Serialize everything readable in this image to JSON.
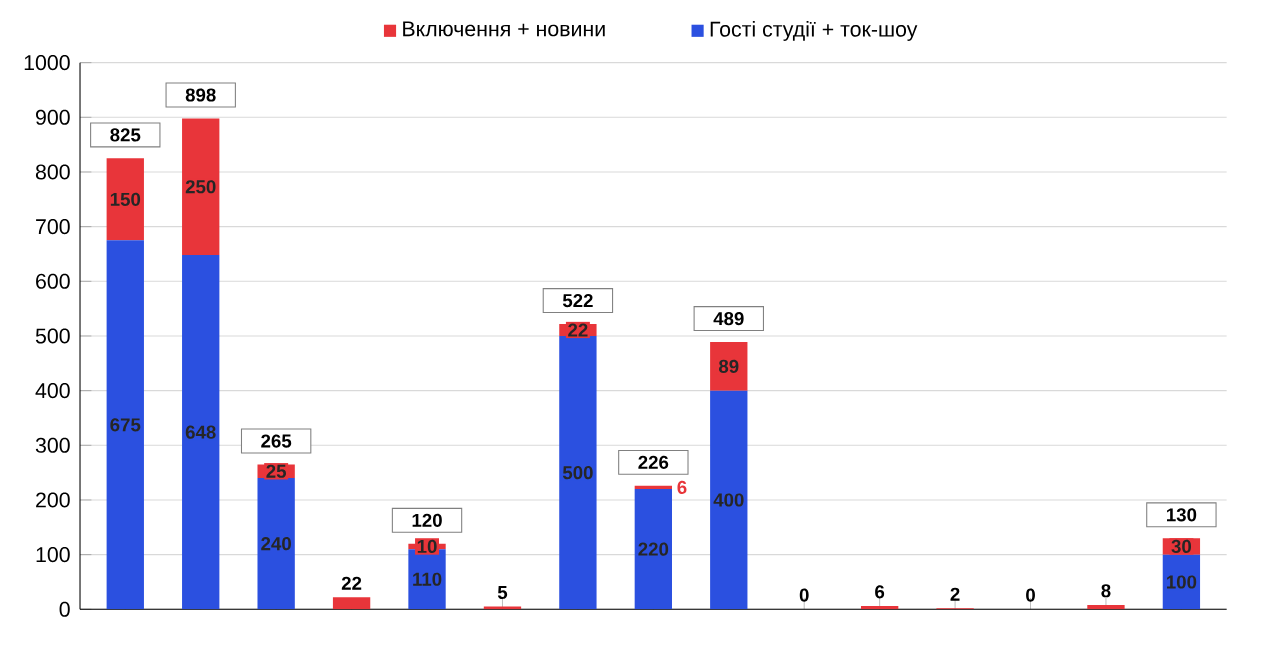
{
  "chart_data": {
    "type": "bar",
    "stacked": true,
    "categories": [
      null,
      null,
      null,
      null,
      null,
      null,
      null,
      null,
      null,
      null,
      null,
      null,
      null,
      null,
      null
    ],
    "series": [
      {
        "name": "Гості студії + ток-шоу",
        "color": "#2b50e0",
        "values": [
          675,
          648,
          240,
          0,
          110,
          0,
          500,
          220,
          400,
          0,
          0,
          0,
          0,
          0,
          100
        ],
        "value_labels": [
          "675",
          "648",
          "240",
          null,
          "110",
          null,
          "500",
          "220",
          "400",
          null,
          null,
          null,
          null,
          null,
          "100"
        ]
      },
      {
        "name": "Включення + новини",
        "color": "#e8353a",
        "values": [
          150,
          250,
          25,
          22,
          10,
          5,
          22,
          6,
          89,
          0,
          6,
          2,
          0,
          8,
          30
        ],
        "value_labels": [
          "150",
          "250",
          "25",
          null,
          "10",
          null,
          "22",
          "6",
          "89",
          null,
          null,
          null,
          null,
          null,
          "30"
        ]
      }
    ],
    "totals": [
      "825",
      "898",
      "265",
      "22",
      "120",
      "5",
      "522",
      "226",
      "489",
      "0",
      "6",
      "2",
      "0",
      "8",
      "130"
    ],
    "ylim": [
      0,
      1000
    ],
    "yticks": [
      0,
      100,
      200,
      300,
      400,
      500,
      600,
      700,
      800,
      900,
      1000
    ],
    "grid": "y",
    "legend": "top"
  }
}
